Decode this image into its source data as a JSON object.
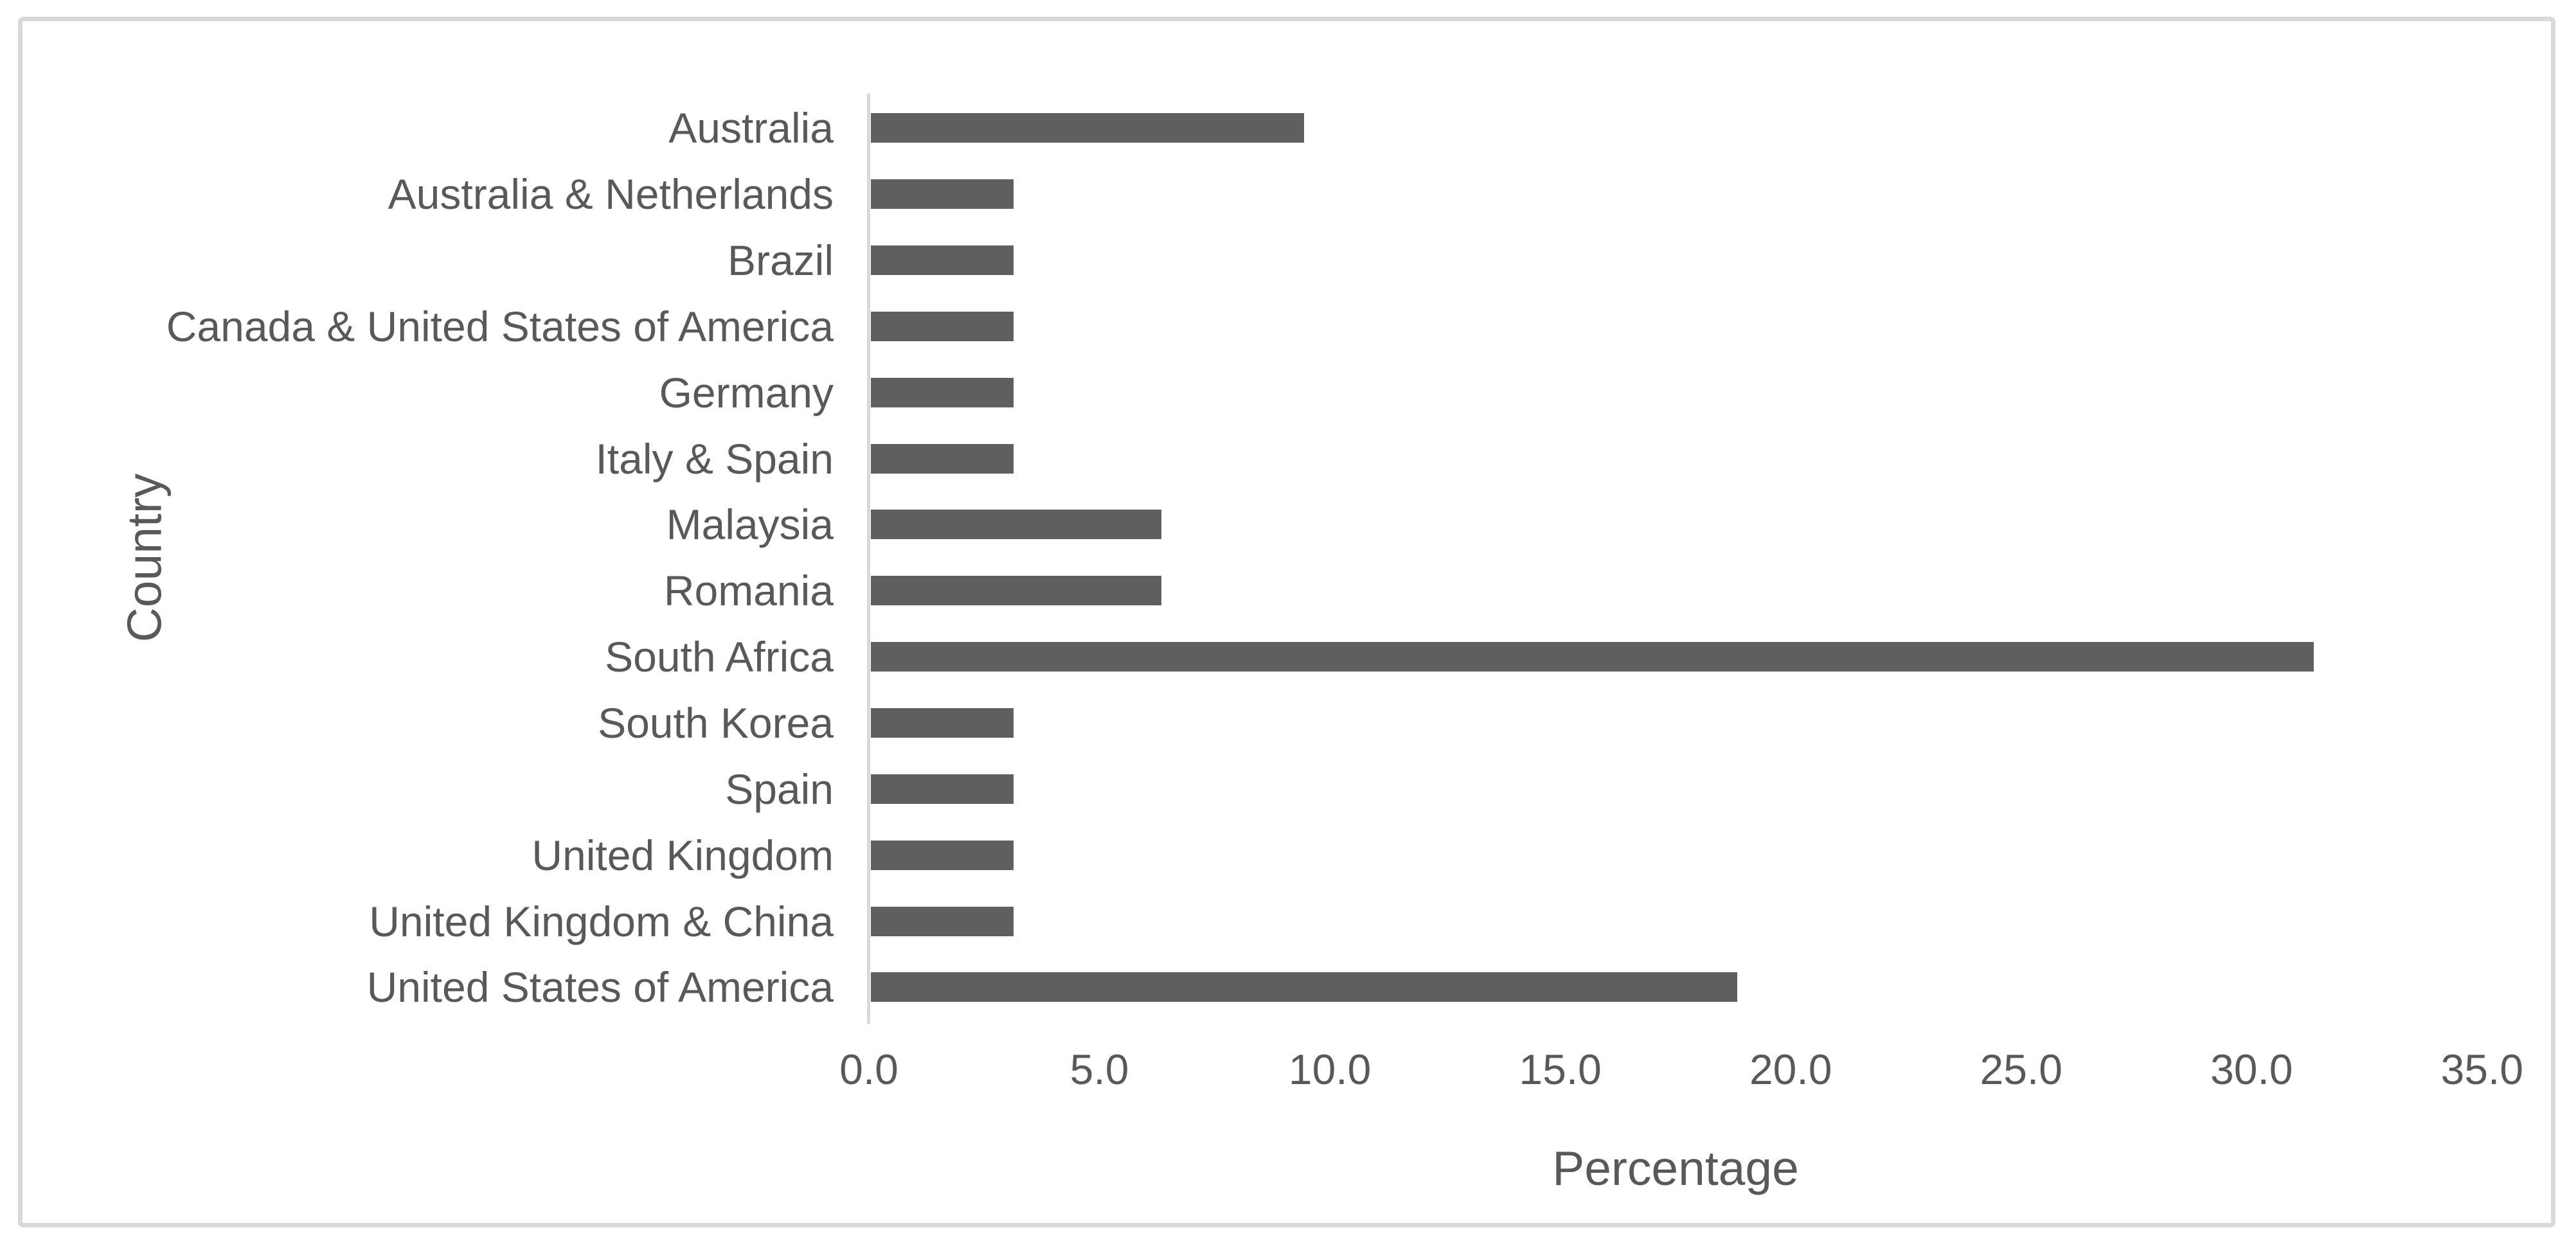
{
  "chart_data": {
    "type": "bar",
    "orientation": "horizontal",
    "title": "",
    "xlabel": "Percentage",
    "ylabel": "Country",
    "categories": [
      "Australia",
      "Australia & Netherlands",
      "Brazil",
      "Canada & United States of America",
      "Germany",
      "Italy & Spain",
      "Malaysia",
      "Romania",
      "South Africa",
      "South Korea",
      "Spain",
      "United Kingdom",
      "United Kingdom & China",
      "United States of America"
    ],
    "values": [
      9.4,
      3.1,
      3.1,
      3.1,
      3.1,
      3.1,
      6.3,
      6.3,
      31.3,
      3.1,
      3.1,
      3.1,
      3.1,
      18.8
    ],
    "xlim": [
      0,
      35
    ],
    "xtick_labels": [
      "0.0",
      "5.0",
      "10.0",
      "15.0",
      "20.0",
      "25.0",
      "30.0",
      "35.0"
    ],
    "xtick_values": [
      0,
      5,
      10,
      15,
      20,
      25,
      30,
      35
    ],
    "grid": false,
    "legend_position": "none",
    "colors": {
      "bar": "#5F5F5F",
      "axis_line": "#D9D9D9",
      "frame_border": "#D9D9D9",
      "text": "#595959",
      "background": "#FFFFFF"
    }
  }
}
